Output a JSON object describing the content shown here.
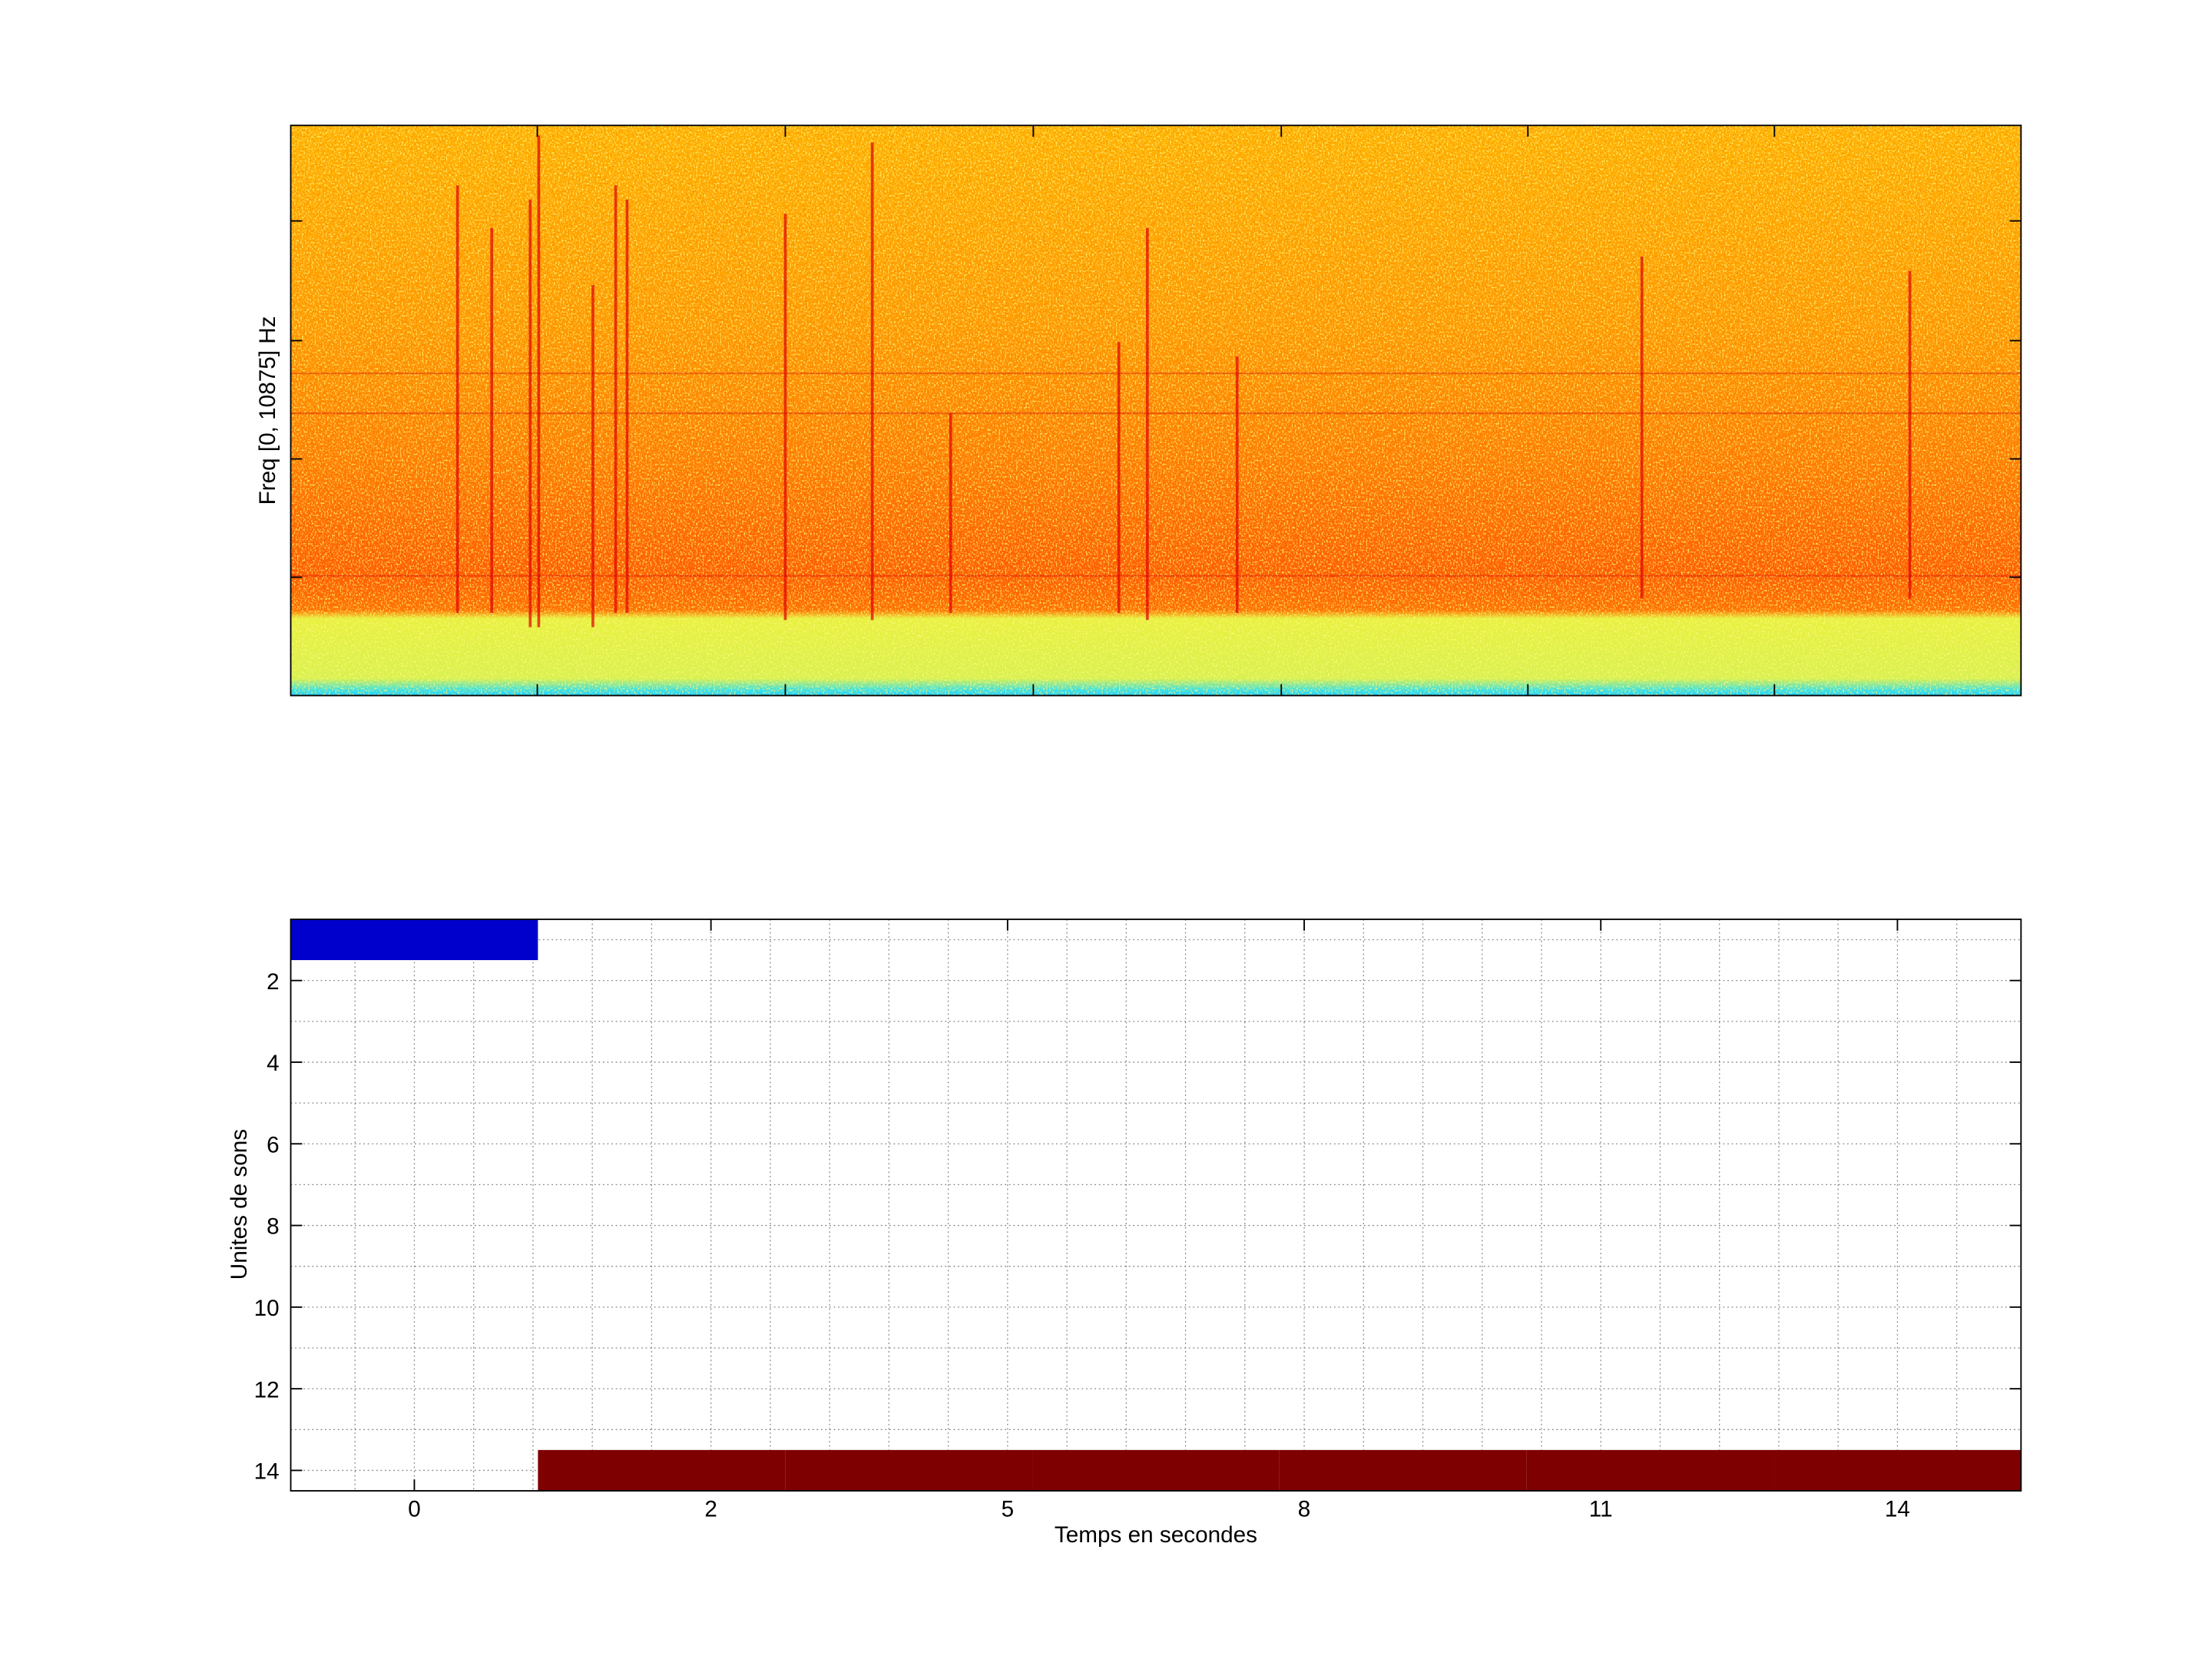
{
  "chart_data": [
    {
      "type": "spectrogram",
      "ylabel": "Freq [0, 10875] Hz"
    },
    {
      "type": "segments",
      "xlabel": "Temps en secondes",
      "ylabel": "Unites de sons",
      "x": [
        1,
        2,
        3,
        4,
        5,
        6,
        7
      ],
      "values": [
        1,
        14,
        14,
        14,
        14,
        14,
        14
      ],
      "colors": [
        "#0000cc",
        "#7f0000",
        "#7f0000",
        "#7f0000",
        "#7f0000",
        "#7f0000",
        "#7f0000"
      ],
      "xlim": [
        0.5,
        7.5
      ],
      "ylim": [
        0.5,
        14.5
      ],
      "y_reversed": true,
      "grid": true,
      "xticks": [
        {
          "value": 1,
          "label": "0"
        },
        {
          "value": 2.2,
          "label": "2"
        },
        {
          "value": 3.4,
          "label": "5"
        },
        {
          "value": 4.6,
          "label": "8"
        },
        {
          "value": 5.8,
          "label": "11"
        },
        {
          "value": 7,
          "label": "14"
        }
      ],
      "xminorticks": [
        0.76,
        1.24,
        1.48,
        1.72,
        1.96,
        2.44,
        2.68,
        2.92,
        3.16,
        3.64,
        3.88,
        4.12,
        4.36,
        4.84,
        5.08,
        5.32,
        5.56,
        6.04,
        6.28,
        6.52,
        6.76,
        7.24
      ],
      "yticks": [
        2,
        4,
        6,
        8,
        10,
        12,
        14
      ],
      "yminorticks": [
        1,
        3,
        5,
        7,
        9,
        11,
        13
      ]
    }
  ]
}
